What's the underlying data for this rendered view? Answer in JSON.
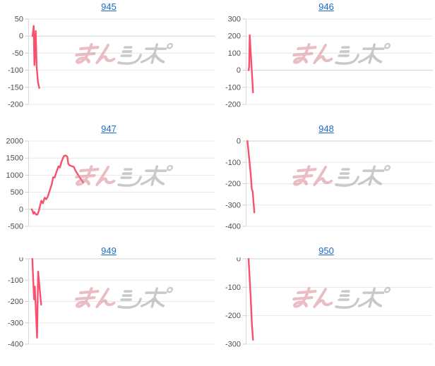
{
  "style": {
    "background": "#ffffff",
    "line_color": "#f9506e",
    "grid_color": "#e8e8e8",
    "zero_grid_color": "#d2d2d2",
    "axis_line_color": "#dadada",
    "tick_mark_color": "#cfcfcf",
    "tick_label_color": "#4d4d4d",
    "title_link_color": "#1c6bc8"
  },
  "watermark": {
    "text": "みんレポ",
    "pink_part": "みん",
    "gray_part": "レポ",
    "pink_color": "#d98894",
    "gray_color": "#a6a6a6"
  },
  "chart_data": [
    {
      "type": "line",
      "title": "945",
      "title_is_link": true,
      "y_ticks": [
        50,
        0,
        -50,
        -100,
        -150,
        -200
      ],
      "ylim": [
        -200,
        50
      ],
      "x_ticks": [],
      "grid": true,
      "legend": "none",
      "points_pct_value": [
        [
          2.3,
          0
        ],
        [
          2.9,
          30
        ],
        [
          3.3,
          -85
        ],
        [
          4.0,
          15
        ],
        [
          4.5,
          -90
        ],
        [
          5.2,
          -135
        ],
        [
          5.9,
          -152
        ]
      ]
    },
    {
      "type": "line",
      "title": "946",
      "title_is_link": true,
      "y_ticks": [
        300,
        200,
        100,
        0,
        -100,
        -200
      ],
      "ylim": [
        -200,
        300
      ],
      "x_ticks": [],
      "grid": true,
      "legend": "none",
      "points_pct_value": [
        [
          1.5,
          0
        ],
        [
          1.8,
          20
        ],
        [
          2.1,
          205
        ],
        [
          3.0,
          40
        ],
        [
          3.9,
          -130
        ]
      ]
    },
    {
      "type": "line",
      "title": "947",
      "title_is_link": true,
      "y_ticks": [
        2000,
        1500,
        1000,
        500,
        0,
        -500
      ],
      "ylim": [
        -500,
        2000
      ],
      "x_ticks": [],
      "grid": true,
      "legend": "none",
      "points_pct_value": [
        [
          1.8,
          0
        ],
        [
          2.4,
          -60
        ],
        [
          2.8,
          -130
        ],
        [
          3.3,
          -80
        ],
        [
          4.1,
          -150
        ],
        [
          4.8,
          -160
        ],
        [
          5.6,
          -60
        ],
        [
          7.0,
          250
        ],
        [
          7.8,
          175
        ],
        [
          8.8,
          340
        ],
        [
          9.6,
          295
        ],
        [
          10.4,
          370
        ],
        [
          11.5,
          555
        ],
        [
          12.6,
          740
        ],
        [
          13.3,
          940
        ],
        [
          14.1,
          930
        ],
        [
          15.2,
          1115
        ],
        [
          16.2,
          1260
        ],
        [
          16.9,
          1225
        ],
        [
          17.8,
          1400
        ],
        [
          19.0,
          1555
        ],
        [
          19.9,
          1580
        ],
        [
          20.9,
          1540
        ],
        [
          21.4,
          1330
        ],
        [
          22.1,
          1290
        ],
        [
          23.3,
          1265
        ],
        [
          24.3,
          1245
        ],
        [
          25.3,
          1130
        ],
        [
          26.3,
          1040
        ],
        [
          27.4,
          945
        ],
        [
          28.4,
          860
        ],
        [
          29.4,
          790
        ]
      ]
    },
    {
      "type": "line",
      "title": "948",
      "title_is_link": true,
      "y_ticks": [
        0,
        -100,
        -200,
        -300,
        -400
      ],
      "ylim": [
        -400,
        0
      ],
      "x_ticks": [],
      "grid": true,
      "legend": "none",
      "points_pct_value": [
        [
          0.9,
          0
        ],
        [
          2.6,
          -150
        ],
        [
          3.2,
          -223
        ],
        [
          3.7,
          -237
        ],
        [
          4.6,
          -335
        ]
      ]
    },
    {
      "type": "line",
      "title": "949",
      "title_is_link": true,
      "y_ticks": [
        0,
        -100,
        -200,
        -300,
        -400
      ],
      "ylim": [
        -400,
        0
      ],
      "x_ticks": [],
      "grid": true,
      "legend": "none",
      "points_pct_value": [
        [
          2.2,
          0
        ],
        [
          3.1,
          -190
        ],
        [
          3.5,
          -130
        ],
        [
          4.7,
          -370
        ],
        [
          5.3,
          -60
        ],
        [
          6.1,
          -140
        ],
        [
          6.9,
          -215
        ]
      ]
    },
    {
      "type": "line",
      "title": "950",
      "title_is_link": true,
      "y_ticks": [
        0,
        -100,
        -200,
        -300
      ],
      "ylim": [
        -300,
        0
      ],
      "x_ticks": [],
      "grid": true,
      "legend": "none",
      "points_pct_value": [
        [
          1.5,
          0
        ],
        [
          2.5,
          -115
        ],
        [
          3.3,
          -230
        ],
        [
          3.9,
          -285
        ]
      ]
    }
  ]
}
